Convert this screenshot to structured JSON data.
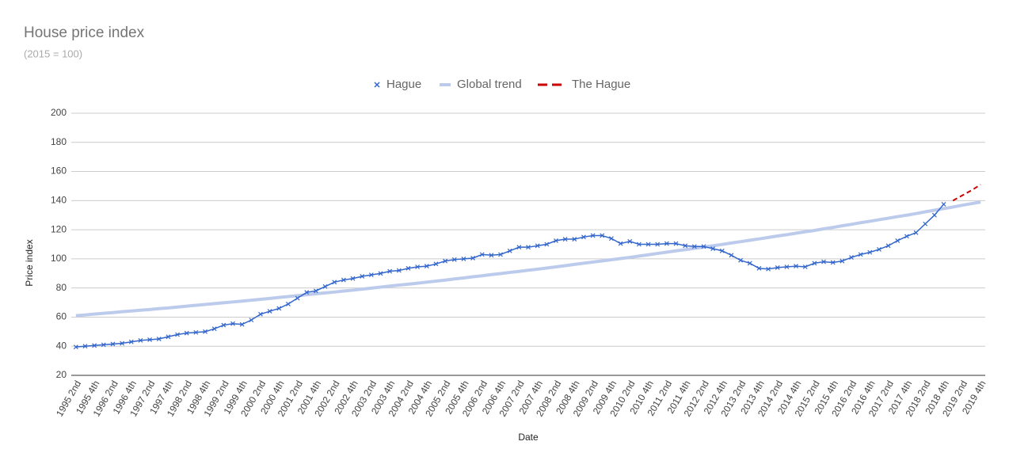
{
  "chart_data": {
    "type": "line",
    "title": "House price index",
    "subtitle": "(2015 = 100)",
    "x_label": "Date",
    "y_label": "Price index",
    "categories": [
      "1995 2nd",
      null,
      "1995 4th",
      null,
      "1996 2nd",
      null,
      "1996 4th",
      null,
      "1997 2nd",
      null,
      "1997 4th",
      null,
      "1998 2nd",
      null,
      "1998 4th",
      null,
      "1999 2nd",
      null,
      "1999 4th",
      null,
      "2000 2nd",
      null,
      "2000 4th",
      null,
      "2001 2nd",
      null,
      "2001 4th",
      null,
      "2002 2nd",
      null,
      "2002 4th",
      null,
      "2003 2nd",
      null,
      "2003 4th",
      null,
      "2004 2nd",
      null,
      "2004 4th",
      null,
      "2005 2nd",
      null,
      "2005 4th",
      null,
      "2006 2nd",
      null,
      "2006 4th",
      null,
      "2007 2nd",
      null,
      "2007 4th",
      null,
      "2008 2nd",
      null,
      "2008 4th",
      null,
      "2009 2nd",
      null,
      "2009 4th",
      null,
      "2010 2nd",
      null,
      "2010 4th",
      null,
      "2011 2nd",
      null,
      "2011 4th",
      null,
      "2012 2nd",
      null,
      "2012 4th",
      null,
      "2013 2nd",
      null,
      "2013 4th",
      null,
      "2014 2nd",
      null,
      "2014 4th",
      null,
      "2015 2nd",
      null,
      "2015 4th",
      null,
      "2016 2nd",
      null,
      "2016 4th",
      null,
      "2017 2nd",
      null,
      "2017 4th",
      null,
      "2018 2nd",
      null,
      "2018 4th",
      null,
      "2019 2nd",
      null,
      "2019 4th"
    ],
    "series": [
      {
        "name": "Hague",
        "color": "#3366cc",
        "style": "markers-line",
        "values": [
          39.5,
          40,
          40.5,
          41,
          41.5,
          42,
          43,
          44,
          44.5,
          45,
          46.5,
          48,
          49,
          49.5,
          50,
          52,
          54.5,
          55.5,
          55,
          58,
          62,
          64,
          66,
          69,
          73,
          77,
          78,
          81,
          84,
          85.5,
          86.5,
          88,
          89,
          90,
          91.5,
          92,
          93.5,
          94.5,
          95,
          96.5,
          98.5,
          99.5,
          100,
          100.5,
          103,
          102.5,
          103,
          105.5,
          108,
          108,
          109,
          110,
          112.5,
          113.5,
          113.5,
          115,
          116,
          116,
          114,
          110.5,
          112,
          110,
          110,
          110,
          110.5,
          110.5,
          109,
          108.5,
          108.5,
          107,
          105.5,
          102.5,
          99,
          97,
          93.5,
          93,
          94,
          94.5,
          95,
          94.5,
          97,
          98,
          97.5,
          98.5,
          101,
          103,
          104.5,
          106.5,
          109,
          112.5,
          115.5,
          118,
          124,
          130,
          137.5,
          null,
          null,
          null,
          null
        ]
      },
      {
        "name": "Global trend",
        "color": "#bccbec",
        "style": "thick",
        "values": [
          61,
          61.5,
          62.1,
          62.6,
          63.1,
          63.7,
          64.2,
          64.7,
          65.2,
          65.8,
          66.3,
          66.9,
          67.5,
          68.1,
          68.7,
          69.3,
          69.8,
          70.4,
          71.0,
          71.6,
          72.2,
          72.8,
          73.5,
          74.1,
          74.7,
          75.4,
          76.0,
          76.6,
          77.2,
          77.9,
          78.5,
          79.2,
          79.9,
          80.6,
          81.3,
          82.0,
          82.6,
          83.3,
          84.0,
          84.7,
          85.4,
          86.2,
          86.9,
          87.7,
          88.4,
          89.2,
          89.9,
          90.7,
          91.4,
          92.2,
          92.9,
          93.7,
          94.5,
          95.3,
          96.2,
          97.0,
          97.8,
          98.6,
          99.4,
          100.2,
          101.0,
          101.9,
          102.8,
          103.7,
          104.6,
          105.5,
          106.3,
          107.2,
          108.1,
          109.0,
          109.9,
          110.9,
          111.8,
          112.8,
          113.7,
          114.7,
          115.7,
          116.6,
          117.6,
          118.6,
          119.5,
          120.6,
          121.6,
          122.7,
          123.7,
          124.8,
          125.8,
          126.9,
          127.9,
          129.0,
          130.0,
          131.1,
          132.3,
          133.4,
          134.5,
          135.6,
          136.8,
          137.9,
          139.0
        ]
      },
      {
        "name": "The Hague",
        "color": "#cc0000",
        "style": "dashed",
        "values": [
          null,
          null,
          null,
          null,
          null,
          null,
          null,
          null,
          null,
          null,
          null,
          null,
          null,
          null,
          null,
          null,
          null,
          null,
          null,
          null,
          null,
          null,
          null,
          null,
          null,
          null,
          null,
          null,
          null,
          null,
          null,
          null,
          null,
          null,
          null,
          null,
          null,
          null,
          null,
          null,
          null,
          null,
          null,
          null,
          null,
          null,
          null,
          null,
          null,
          null,
          null,
          null,
          null,
          null,
          null,
          null,
          null,
          null,
          null,
          null,
          null,
          null,
          null,
          null,
          null,
          null,
          null,
          null,
          null,
          null,
          null,
          null,
          null,
          null,
          null,
          null,
          null,
          null,
          null,
          null,
          null,
          null,
          null,
          null,
          null,
          null,
          null,
          null,
          null,
          null,
          null,
          null,
          null,
          null,
          null,
          140,
          143.5,
          147,
          151
        ]
      }
    ],
    "ylim": [
      20,
      200
    ],
    "yticks": [
      20,
      40,
      60,
      80,
      100,
      120,
      140,
      160,
      180,
      200
    ],
    "grid": true,
    "legend": "top"
  }
}
